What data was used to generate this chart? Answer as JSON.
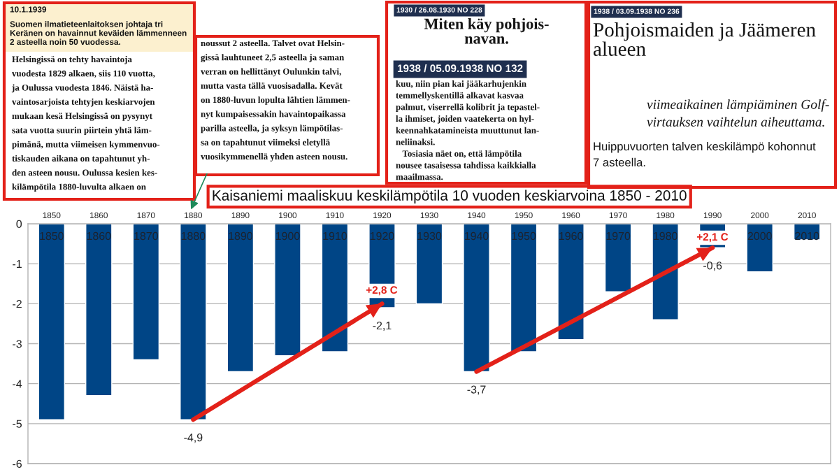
{
  "chart_data": {
    "type": "bar",
    "title": "Kaisaniemi maaliskuu keskilämpötila 10 vuoden keskiarvoina 1850 - 2010",
    "categories": [
      "1850",
      "1860",
      "1870",
      "1880",
      "1890",
      "1900",
      "1910",
      "1920",
      "1930",
      "1940",
      "1950",
      "1960",
      "1970",
      "1980",
      "1990",
      "2000",
      "2010"
    ],
    "series": [
      {
        "color": "#004586",
        "values": [
          -4.9,
          -4.3,
          -3.4,
          -4.9,
          -3.7,
          -3.3,
          -3.2,
          -2.1,
          -2.0,
          -3.7,
          -3.2,
          -2.9,
          -1.7,
          -2.4,
          -0.6,
          -1.2,
          -0.4
        ],
        "value_labels": [
          null,
          null,
          null,
          "-4,9",
          null,
          null,
          null,
          "-2,1",
          null,
          "-3,7",
          null,
          null,
          null,
          null,
          "-0,6",
          null,
          null
        ]
      },
      {
        "type": "line",
        "values": [
          null,
          null,
          null,
          -4.9,
          null,
          null,
          null,
          -2.0,
          null,
          null,
          null,
          null,
          null,
          null,
          null,
          null,
          null
        ],
        "color": "#e32119"
      },
      {
        "type": "line",
        "values": [
          null,
          null,
          null,
          null,
          null,
          null,
          null,
          null,
          null,
          -3.7,
          null,
          null,
          null,
          null,
          -0.6,
          null,
          null
        ],
        "color": "#e32119"
      }
    ],
    "ylim": [
      -6,
      0
    ],
    "yticks": [
      0,
      -1,
      -2,
      -3,
      -4,
      -5,
      -6
    ],
    "grid": "y",
    "annotations": [
      "10.1.1939",
      "Suomen ilmatieteenlaitoksen johtaja tri\nKeränen on havainnut keväiden lämmenneen\n2 asteella noin 50 vuodessa.",
      "Helsingissä on tehty havaintoja\nvuodesta 1829 alkaen, siis 110 vuotta,\nja Oulussa vuodesta 1846. Näistä ha-\nvaintosarjoista tehtyjen keskiarvojen\nmukaan kesä Helsingissä on pysynyt\nsata vuotta suurin piirtein yhtä läm-\npimänä, mutta viimeisen kymmenvuo-\ntiskauden aikana on tapahtunut yh-\nden asteen nousu. Oulussa kesien kes-\nkilämpötila 1880-luvulta alkaen on",
      "noussut 2 asteella. Talvet ovat Helsin-\ngissä lauhtuneet 2,5 asteella ja saman\nverran on hellittänyt Oulunkin talvi,\nmutta vasta tällä vuosisadalla. Kevät\non 1880-luvun lopulta lähtien lämmen-\nnyt kumpaisessakin havaintopaikassa\nparilla asteella, ja syksyn lämpötilas-\nsa on tapahtunut viimeksi eletyllä\nvuosikymmenellä yhden asteen nousu.",
      "1930 / 26.08.1930 NO 228",
      "Miten käy pohjois-\nnavan.",
      "1938 / 05.09.1938 NO 132",
      "kuu, niin pian kai jääkarhujenkin\ntemmellyskentillä alkavat kasvaa\npalmut, viserrellä kolibrit ja tepastel-\nla ihmiset, joiden vaatekerta on hyl-\nkeennahkatamineista muuttunut lan-\nneliinaksi.\n   Tosiasia näet on, että lämpötila\nnousee tasaisessa tahdissa kaikkialla\nmaailmassa.",
      "1938 / 03.09.1938 NO 236",
      "Pohjoismaiden ja Jäämeren\nalueen",
      "viimeaikainen lämpiäminen Golf-\nvirtauksen vaihtelun aiheuttama.",
      "Huippuvuorten talven keskilämpö kohonnut\n7 asteella.",
      "+2,8 C",
      "+2,1 C"
    ]
  }
}
